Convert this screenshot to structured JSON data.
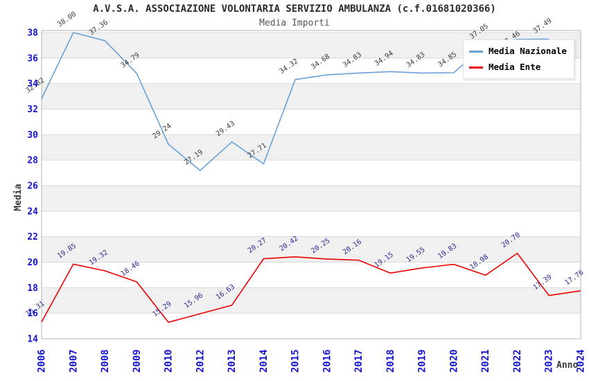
{
  "header": {
    "title": "A.V.S.A. ASSOCIAZIONE VOLONTARIA SERVIZIO AMBULANZA (c.f.01681020366)",
    "subtitle": "Media Importi"
  },
  "legend": {
    "position": "top-right",
    "items": [
      {
        "label": "Media Nazionale",
        "color": "#68a1d8"
      },
      {
        "label": "Media Ente",
        "color": "#ee0000"
      }
    ]
  },
  "axes": {
    "y_label": "Media",
    "x_label": "Anno",
    "y_ticks": [
      38,
      36,
      34,
      32,
      30,
      28,
      26,
      24,
      22,
      20,
      18,
      16,
      14
    ],
    "tick_color": "#1414cc"
  },
  "chart_data": {
    "type": "line",
    "title": "A.V.S.A. ASSOCIAZIONE VOLONTARIA SERVIZIO AMBULANZA (c.f.01681020366)",
    "subtitle": "Media Importi",
    "xlabel": "Anno",
    "ylabel": "Media",
    "ylim": [
      14,
      38
    ],
    "ytick_step": 2,
    "grid": "horizontal-bands",
    "legend_position": "top-right",
    "categories": [
      "2006",
      "2007",
      "2008",
      "2009",
      "2010",
      "2012",
      "2013",
      "2014",
      "2015",
      "2016",
      "2017",
      "2018",
      "2019",
      "2020",
      "2021",
      "2022",
      "2023",
      "2024"
    ],
    "series": [
      {
        "name": "Media Nazionale",
        "color": "#68a1d8",
        "label_color": "#3c3c3c",
        "values": [
          32.82,
          38.0,
          37.36,
          34.79,
          29.24,
          27.19,
          29.43,
          27.71,
          34.32,
          34.68,
          34.83,
          34.94,
          34.83,
          34.85,
          37.05,
          37.46,
          37.49,
          null
        ]
      },
      {
        "name": "Media Ente",
        "color": "#ee0000",
        "label_color": "#2a2a96",
        "values": [
          15.31,
          19.85,
          19.32,
          18.46,
          15.29,
          15.96,
          16.63,
          20.27,
          20.42,
          20.25,
          20.16,
          19.15,
          19.55,
          19.83,
          18.98,
          20.7,
          17.39,
          17.76
        ]
      }
    ],
    "band_color": "#f0f0f0",
    "gridline_color": "#d9d9d9",
    "border_color": "#b5b5b5"
  }
}
